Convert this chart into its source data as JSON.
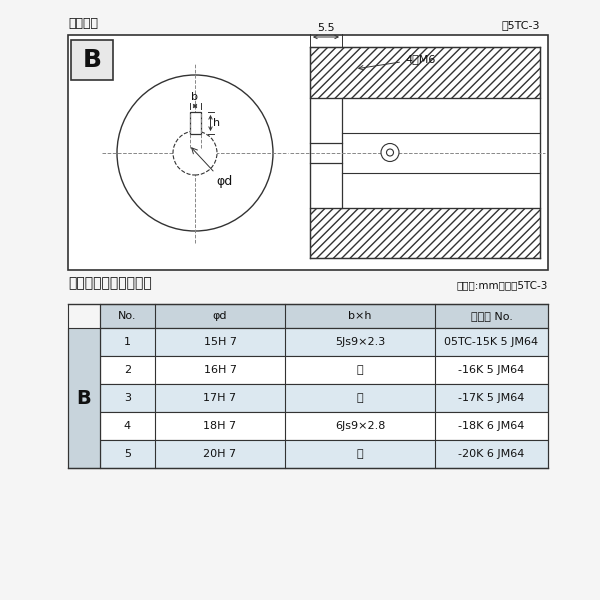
{
  "title_diagram": "軸穴形状",
  "fig_label": "囵5TC-3",
  "table_title": "軸穴形状コード一覧表",
  "table_unit": "（単位:mm）　表5TC-3",
  "dim_55": "5.5",
  "dim_4M6": "4－M6",
  "label_b": "b",
  "label_h": "h",
  "label_phi_d": "φd",
  "col_headers": [
    "No.",
    "φd",
    "b×h",
    "コード No."
  ],
  "rows": [
    [
      "1",
      "15H 7",
      "5Js9×2.3",
      "05TC-15K 5 JM64"
    ],
    [
      "2",
      "16H 7",
      "〃",
      "-16K 5 JM64"
    ],
    [
      "3",
      "17H 7",
      "〃",
      "-17K 5 JM64"
    ],
    [
      "4",
      "18H 7",
      "6Js9×2.8",
      "-18K 6 JM64"
    ],
    [
      "5",
      "20H 7",
      "〃",
      "-20K 6 JM64"
    ]
  ],
  "row_B_label": "B",
  "bg_color": "#f5f5f5",
  "diagram_bg": "#ffffff",
  "border_color": "#333333",
  "cl_color": "#888888",
  "text_color": "#111111",
  "header_bg": "#c8d4dc",
  "row_light_bg": "#dce8f0",
  "row_white_bg": "#ffffff",
  "b_cell_bg": "#c8d4dc",
  "hatch_color": "#555555"
}
